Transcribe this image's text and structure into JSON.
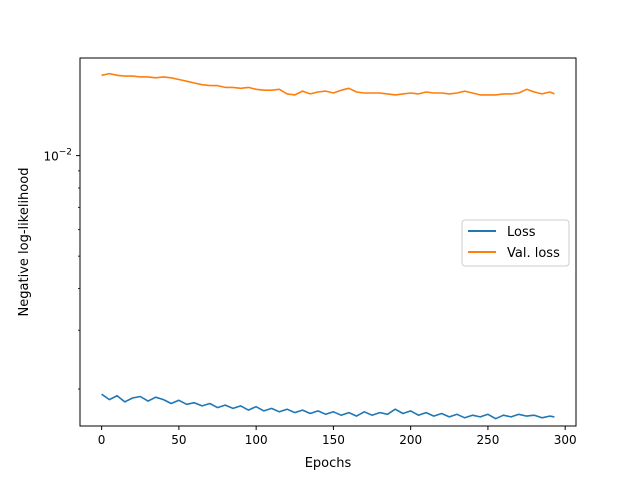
{
  "chart_data": {
    "type": "line",
    "xlabel": "Epochs",
    "ylabel": "Negative log-likelihood",
    "yscale": "log",
    "xlim": [
      -14,
      307
    ],
    "ylim": [
      0.00155,
      0.0196
    ],
    "x_ticks": [
      {
        "value": 0,
        "label": "0"
      },
      {
        "value": 50,
        "label": "50"
      },
      {
        "value": 100,
        "label": "100"
      },
      {
        "value": 150,
        "label": "150"
      },
      {
        "value": 200,
        "label": "200"
      },
      {
        "value": 250,
        "label": "250"
      },
      {
        "value": 300,
        "label": "300"
      }
    ],
    "y_ticks": [
      {
        "value": 0.01,
        "label_base": "10",
        "label_exp": "−2"
      }
    ],
    "grid": false,
    "legend": {
      "position": "center-right"
    },
    "series": [
      {
        "name": "Loss",
        "color": "#1f77b4",
        "x": [
          0,
          5,
          10,
          15,
          20,
          25,
          30,
          35,
          40,
          45,
          50,
          55,
          60,
          65,
          70,
          75,
          80,
          85,
          90,
          95,
          100,
          105,
          110,
          115,
          120,
          125,
          130,
          135,
          140,
          145,
          150,
          155,
          160,
          165,
          170,
          175,
          180,
          185,
          190,
          195,
          200,
          205,
          210,
          215,
          220,
          225,
          230,
          235,
          240,
          245,
          250,
          255,
          260,
          265,
          270,
          275,
          280,
          285,
          290,
          293
        ],
        "y": [
          0.00193,
          0.00186,
          0.00191,
          0.00183,
          0.00188,
          0.0019,
          0.00184,
          0.00189,
          0.00186,
          0.00181,
          0.00185,
          0.0018,
          0.00182,
          0.00178,
          0.00181,
          0.00176,
          0.00179,
          0.00175,
          0.00178,
          0.00173,
          0.00177,
          0.00172,
          0.00175,
          0.00171,
          0.00174,
          0.0017,
          0.00173,
          0.00169,
          0.00172,
          0.00168,
          0.00171,
          0.00167,
          0.0017,
          0.00166,
          0.00171,
          0.00167,
          0.0017,
          0.00168,
          0.00174,
          0.00169,
          0.00172,
          0.00167,
          0.0017,
          0.00166,
          0.00169,
          0.00165,
          0.00168,
          0.00164,
          0.00167,
          0.00165,
          0.00168,
          0.00163,
          0.00167,
          0.00165,
          0.00168,
          0.00166,
          0.00167,
          0.00164,
          0.00166,
          0.00165
        ]
      },
      {
        "name": "Val. loss",
        "color": "#ff7f0e",
        "x": [
          0,
          5,
          10,
          15,
          20,
          25,
          30,
          35,
          40,
          45,
          50,
          55,
          60,
          65,
          70,
          75,
          80,
          85,
          90,
          95,
          100,
          105,
          110,
          115,
          120,
          125,
          130,
          135,
          140,
          145,
          150,
          155,
          160,
          165,
          170,
          175,
          180,
          185,
          190,
          195,
          200,
          205,
          210,
          215,
          220,
          225,
          230,
          235,
          240,
          245,
          250,
          255,
          260,
          265,
          270,
          275,
          280,
          285,
          290,
          293
        ],
        "y": [
          0.0174,
          0.0176,
          0.0174,
          0.0173,
          0.0173,
          0.0172,
          0.0172,
          0.0171,
          0.0172,
          0.0171,
          0.0169,
          0.0167,
          0.0165,
          0.0163,
          0.0162,
          0.0162,
          0.016,
          0.016,
          0.0159,
          0.016,
          0.0158,
          0.0157,
          0.0157,
          0.0158,
          0.0153,
          0.0152,
          0.0156,
          0.0153,
          0.0155,
          0.0156,
          0.0154,
          0.0157,
          0.0159,
          0.0155,
          0.0154,
          0.0154,
          0.0154,
          0.0153,
          0.0152,
          0.0153,
          0.0154,
          0.0153,
          0.0155,
          0.0154,
          0.0154,
          0.0153,
          0.0154,
          0.0156,
          0.0154,
          0.0152,
          0.0152,
          0.0152,
          0.0153,
          0.0153,
          0.0154,
          0.0158,
          0.0155,
          0.0153,
          0.0155,
          0.0153
        ]
      }
    ]
  }
}
